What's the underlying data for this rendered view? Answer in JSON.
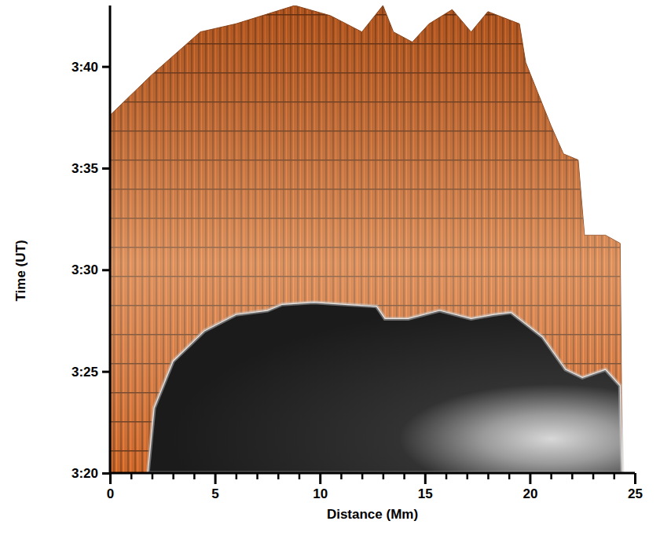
{
  "chart_data": {
    "type": "area",
    "x_label": "Distance (Mm)",
    "y_label": "Time (UT)",
    "xlim": [
      0,
      25
    ],
    "ylim": [
      200,
      223
    ],
    "xticks": [
      0,
      5,
      10,
      15,
      20,
      25
    ],
    "xminor_ticks": [
      1,
      2,
      3,
      4,
      6,
      7,
      8,
      9,
      11,
      12,
      13,
      14,
      16,
      17,
      18,
      19,
      21,
      22,
      23,
      24
    ],
    "yticks": [
      {
        "value": 200,
        "label": "3:20"
      },
      {
        "value": 205,
        "label": "3:25"
      },
      {
        "value": 210,
        "label": "3:30"
      },
      {
        "value": 215,
        "label": "3:35"
      },
      {
        "value": 220,
        "label": "3:40"
      }
    ],
    "series": [
      {
        "color": "#c8662a",
        "x": [
          0,
          0,
          2.0,
          4.3,
          6.0,
          8.8,
          10.5,
          12.0,
          13.0,
          13.5,
          14.4,
          15.2,
          16.3,
          17.2,
          18.0,
          19.5,
          19.8,
          21.0,
          21.6,
          22.3,
          22.6,
          23.6,
          24.3,
          24.4
        ],
        "values": [
          200,
          217.6,
          219.6,
          221.7,
          222.1,
          223.0,
          222.5,
          221.7,
          223.0,
          221.7,
          221.2,
          222.1,
          222.8,
          221.7,
          222.7,
          222.1,
          220.2,
          217.1,
          215.7,
          215.4,
          211.7,
          211.7,
          211.3,
          200
        ]
      },
      {
        "color": "#2a2a2a",
        "x": [
          1.8,
          2.1,
          3.0,
          4.5,
          6.0,
          7.5,
          8.2,
          9.7,
          11.2,
          12.7,
          13.1,
          14.2,
          15.7,
          17.2,
          18.3,
          19.1,
          20.6,
          21.7,
          22.5,
          23.6,
          24.3,
          24.4
        ],
        "values": [
          200,
          203.2,
          205.5,
          207.0,
          207.8,
          208.0,
          208.3,
          208.4,
          208.3,
          208.2,
          207.6,
          207.6,
          208.0,
          207.6,
          207.8,
          207.9,
          206.7,
          205.1,
          204.7,
          205.1,
          204.3,
          200
        ]
      }
    ]
  }
}
